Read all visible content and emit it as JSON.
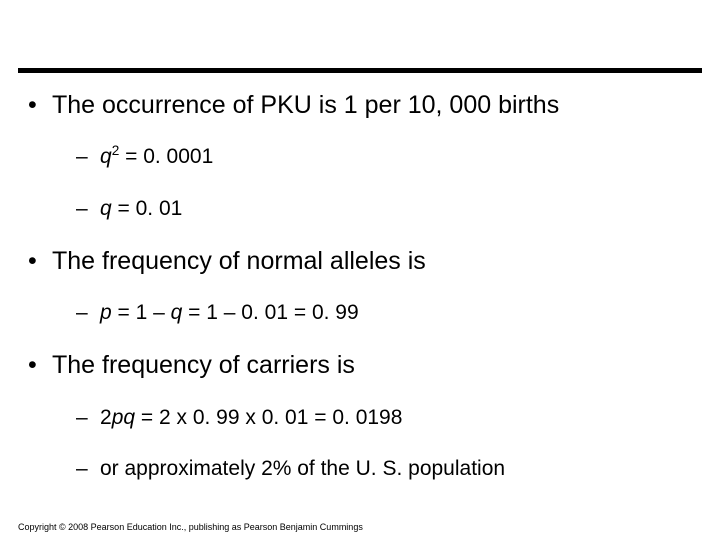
{
  "colors": {
    "background": "#ffffff",
    "text": "#000000",
    "rule": "#000000"
  },
  "fontsize": {
    "level1": 25,
    "level2": 21,
    "copyright": 9
  },
  "bullets": {
    "level1": "•",
    "level2": "–"
  },
  "items": {
    "l1a": "The occurrence of PKU is 1 per 10, 000 births",
    "l2a_q": "q",
    "l2a_rest": " = 0. 0001",
    "l2a_sup": "2",
    "l2b_q": "q",
    "l2b_rest": " = 0. 01",
    "l1b": "The frequency of normal alleles is",
    "l2c_p": "p",
    "l2c_mid1": " = 1 – ",
    "l2c_q": "q",
    "l2c_rest": " = 1 – 0. 01 = 0. 99",
    "l1c": "The frequency of carriers is",
    "l2d_pre": "2",
    "l2d_pq": "pq",
    "l2d_rest": " = 2 x 0. 99 x 0. 01 = 0. 0198",
    "l2e": "or approximately 2% of the U. S. population"
  },
  "copyright": "Copyright © 2008 Pearson Education Inc., publishing as Pearson Benjamin Cummings"
}
